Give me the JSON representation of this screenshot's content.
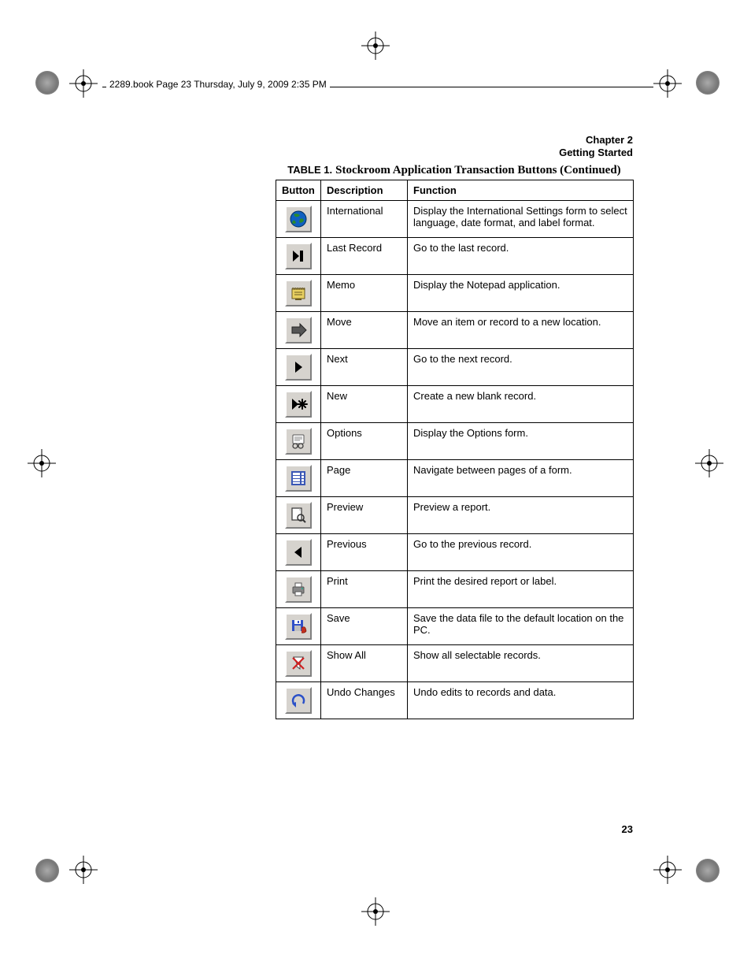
{
  "header": {
    "running_head": "2289.book  Page 23  Thursday, July 9, 2009  2:35 PM",
    "chapter_line1": "Chapter 2",
    "chapter_line2": "Getting Started"
  },
  "caption": {
    "label": "TABLE 1.",
    "title": "Stockroom Application Transaction Buttons (Continued)"
  },
  "table": {
    "headers": {
      "c1": "Button",
      "c2": "Description",
      "c3": "Function"
    },
    "rows": [
      {
        "icon": "international",
        "desc": "International",
        "func": "Display the International Settings form to select language, date format, and label format."
      },
      {
        "icon": "last-record",
        "desc": "Last Record",
        "func": "Go to the last record."
      },
      {
        "icon": "memo",
        "desc": "Memo",
        "func": "Display the Notepad application."
      },
      {
        "icon": "move",
        "desc": "Move",
        "func": "Move an item or record to a new location."
      },
      {
        "icon": "next",
        "desc": "Next",
        "func": "Go to the next record."
      },
      {
        "icon": "new",
        "desc": "New",
        "func": "Create a new blank record."
      },
      {
        "icon": "options",
        "desc": "Options",
        "func": "Display the Options form."
      },
      {
        "icon": "page",
        "desc": "Page",
        "func": "Navigate between pages of a form."
      },
      {
        "icon": "preview",
        "desc": "Preview",
        "func": "Preview a report."
      },
      {
        "icon": "previous",
        "desc": "Previous",
        "func": "Go to the previous record."
      },
      {
        "icon": "print",
        "desc": "Print",
        "func": "Print the desired report or label."
      },
      {
        "icon": "save",
        "desc": "Save",
        "func": "Save the data file to the default location on the PC."
      },
      {
        "icon": "show-all",
        "desc": "Show All",
        "func": "Show all selectable records."
      },
      {
        "icon": "undo",
        "desc": "Undo Changes",
        "func": "Undo edits to records and data."
      }
    ]
  },
  "page_number": "23",
  "style": {
    "button_bg": "#d6d3ce",
    "button_light": "#ffffff",
    "button_dark": "#808080",
    "icon_colors": {
      "globe_water": "#1060c0",
      "globe_land": "#2a8a2a",
      "black": "#000000",
      "memo_yellow": "#e8d060",
      "memo_outline": "#6a5a20",
      "arrow_gray": "#555555",
      "page_blue": "#3a57b5",
      "preview_outline": "#333333",
      "printer_gray": "#888888",
      "save_blue": "#3050c8",
      "save_red": "#c03020",
      "filter_red": "#d02020",
      "undo_blue": "#2a50c8"
    }
  }
}
